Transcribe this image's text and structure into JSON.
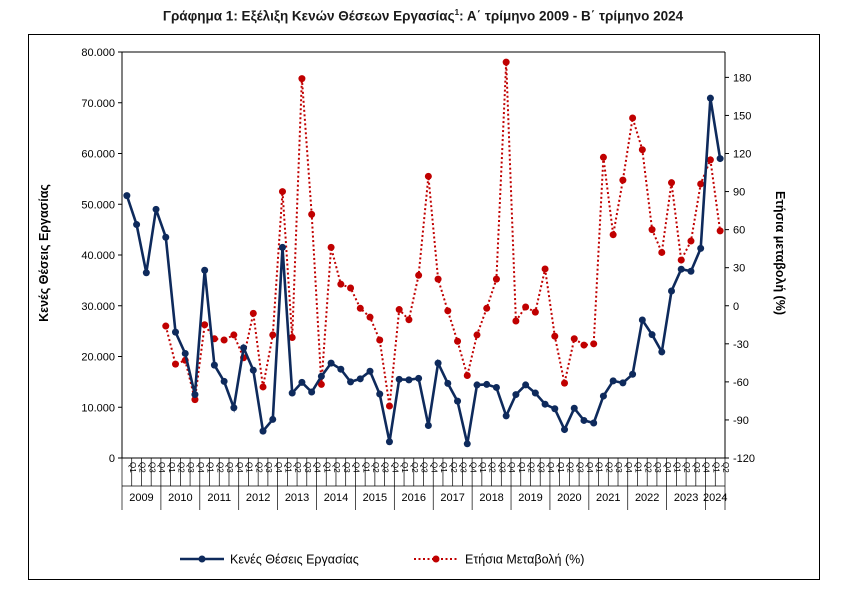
{
  "chart_data": {
    "type": "line",
    "title": "Γράφημα 1: Εξέλιξη Κενών Θέσεων Εργασίας",
    "title_superscript": "1",
    "title_suffix": ": Α΄ τρίμηνο 2009 - Β΄ τρίμηνο 2024",
    "ylabel_left": "Κενές Θέσεις Εργασίας",
    "ylabel_right": "Ετήσια μεταβολή (%)",
    "left_axis": {
      "min": 0,
      "max": 80000,
      "step": 10000,
      "tick_labels": [
        "0",
        "10.000",
        "20.000",
        "30.000",
        "40.000",
        "50.000",
        "60.000",
        "70.000",
        "80.000"
      ]
    },
    "right_axis": {
      "min": -120,
      "max": 200,
      "step": 30,
      "tick_labels": [
        "-120",
        "-90",
        "-60",
        "-30",
        "0",
        "30",
        "60",
        "90",
        "120",
        "150",
        "180"
      ]
    },
    "quarter_labels": [
      "Q1",
      "Q2",
      "Q3",
      "Q4"
    ],
    "years": [
      "2009",
      "2010",
      "2011",
      "2012",
      "2013",
      "2014",
      "2015",
      "2016",
      "2017",
      "2018",
      "2019",
      "2020",
      "2021",
      "2022",
      "2023",
      "2024"
    ],
    "series": [
      {
        "name": "Κενές Θέσεις Εργασίας",
        "axis": "left",
        "color": "#0e2a5c",
        "style": "solid",
        "values": [
          51700,
          46000,
          36500,
          49000,
          43500,
          24800,
          20600,
          12500,
          37000,
          18300,
          15100,
          9900,
          21700,
          17300,
          5300,
          7600,
          41500,
          12800,
          14900,
          13000,
          16100,
          18700,
          17500,
          15000,
          15600,
          17100,
          12600,
          3200,
          15500,
          15400,
          15700,
          6400,
          18700,
          14700,
          11200,
          2800,
          14400,
          14500,
          13900,
          8300,
          12500,
          14400,
          12800,
          10600,
          9700,
          5600,
          9800,
          7400,
          6900,
          12200,
          15200,
          14800,
          16500,
          27200,
          24300,
          20900,
          32900,
          37200,
          36800,
          41300,
          70900,
          59000
        ]
      },
      {
        "name": "Ετήσια Μεταβολή (%)",
        "axis": "right",
        "color": "#c00000",
        "style": "dotted",
        "values": [
          null,
          null,
          null,
          null,
          -16,
          -46,
          -43,
          -74,
          -15,
          -26,
          -27,
          -23,
          -41,
          -6,
          -64,
          -23,
          90,
          -25,
          179,
          72,
          -62,
          46,
          17,
          14,
          -2,
          -9,
          -27,
          -79,
          -3,
          -11,
          24,
          102,
          21,
          -4,
          -28,
          -55,
          -23,
          -2,
          21,
          192,
          -12,
          -1,
          -5,
          29,
          -24,
          -61,
          -26,
          -31,
          -30,
          117,
          56,
          99,
          148,
          123,
          60,
          42,
          97,
          36,
          51,
          96,
          115,
          59
        ]
      }
    ]
  }
}
